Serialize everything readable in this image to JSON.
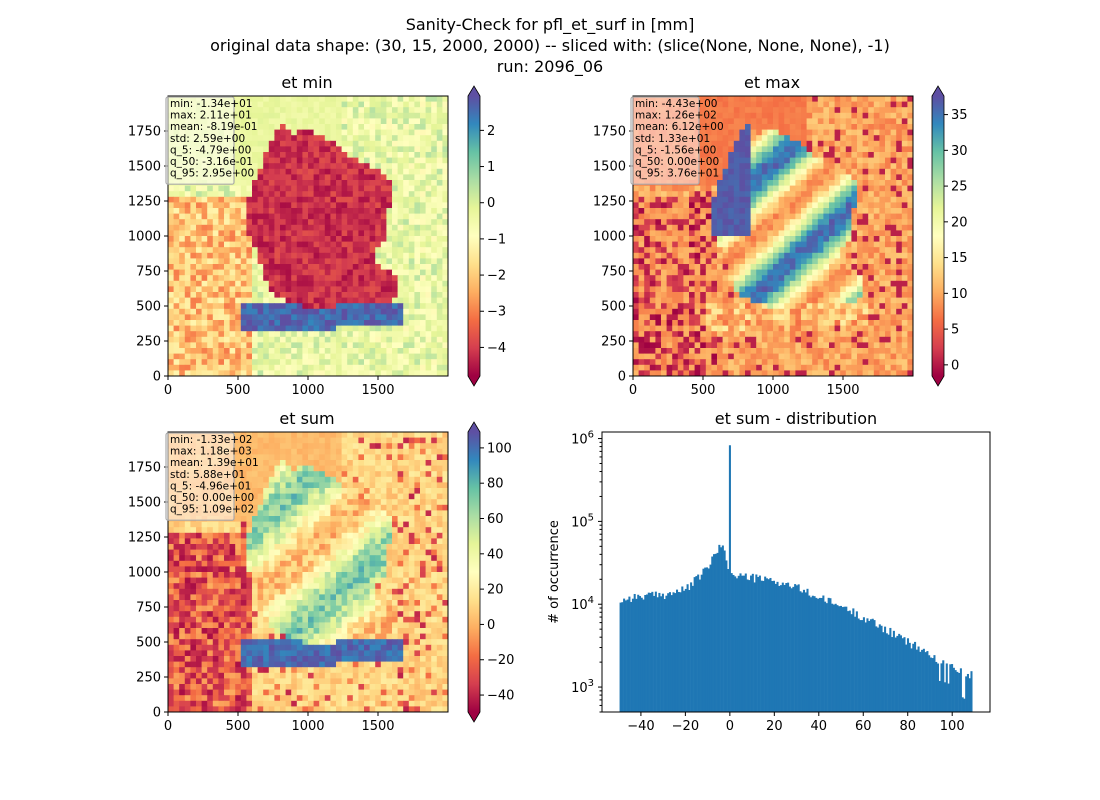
{
  "figure": {
    "title_lines": [
      "Sanity-Check for pfl_et_surf in [mm]",
      "original data shape: (30, 15, 2000, 2000) -- sliced with: (slice(None, None, None), -1)",
      "run: 2096_06"
    ]
  },
  "colors": {
    "spectral": [
      "#9e0142",
      "#d53e4f",
      "#f46d43",
      "#fdae61",
      "#fee08b",
      "#ffffbf",
      "#e6f598",
      "#abdda4",
      "#66c2a5",
      "#3288bd",
      "#5e4fa2"
    ],
    "hist_bar": "#1f77b4"
  },
  "chart_data": [
    {
      "type": "heatmap",
      "title": "et min",
      "xlim": [
        0,
        2000
      ],
      "ylim": [
        0,
        2000
      ],
      "xticks": [
        "0",
        "500",
        "1000",
        "1500"
      ],
      "yticks": [
        "0",
        "250",
        "500",
        "750",
        "1000",
        "1250",
        "1500",
        "1750"
      ],
      "colorbar": {
        "range": [
          -4.79,
          2.95
        ],
        "ticks": [
          "2",
          "1",
          "0",
          "−1",
          "−2",
          "−3",
          "−4"
        ],
        "tick_values": [
          2,
          1,
          0,
          -1,
          -2,
          -3,
          -4
        ],
        "extend": "both"
      },
      "stats": [
        "min: -1.34e+01",
        "max: 2.11e+01",
        "mean: -8.19e-01",
        "std: 2.59e+00",
        "q_5: -4.79e+00",
        "q_50: -3.16e-01",
        "q_95: 2.95e+00"
      ]
    },
    {
      "type": "heatmap",
      "title": "et max",
      "xlim": [
        0,
        2000
      ],
      "ylim": [
        0,
        2000
      ],
      "xticks": [
        "0",
        "500",
        "1000",
        "1500"
      ],
      "yticks": [
        "0",
        "250",
        "500",
        "750",
        "1000",
        "1250",
        "1500",
        "1750"
      ],
      "colorbar": {
        "range": [
          -1.56,
          37.6
        ],
        "ticks": [
          "35",
          "30",
          "25",
          "20",
          "15",
          "10",
          "5",
          "0"
        ],
        "tick_values": [
          35,
          30,
          25,
          20,
          15,
          10,
          5,
          0
        ],
        "extend": "both"
      },
      "stats": [
        "min: -4.43e+00",
        "max: 1.26e+02",
        "mean: 6.12e+00",
        "std: 1.33e+01",
        "q_5: -1.56e+00",
        "q_50: 0.00e+00",
        "q_95: 3.76e+01"
      ]
    },
    {
      "type": "heatmap",
      "title": "et sum",
      "xlim": [
        0,
        2000
      ],
      "ylim": [
        0,
        2000
      ],
      "xticks": [
        "0",
        "500",
        "1000",
        "1500"
      ],
      "yticks": [
        "0",
        "250",
        "500",
        "750",
        "1000",
        "1250",
        "1500",
        "1750"
      ],
      "colorbar": {
        "range": [
          -49.6,
          109
        ],
        "ticks": [
          "100",
          "80",
          "60",
          "40",
          "20",
          "0",
          "−20",
          "−40"
        ],
        "tick_values": [
          100,
          80,
          60,
          40,
          20,
          0,
          -20,
          -40
        ],
        "extend": "both"
      },
      "stats": [
        "min: -1.33e+02",
        "max: 1.18e+03",
        "mean: 1.39e+01",
        "std: 5.88e+01",
        "q_5: -4.96e+01",
        "q_50: 0.00e+00",
        "q_95: 1.09e+02"
      ]
    },
    {
      "type": "bar",
      "title": "et sum - distribution",
      "ylabel": "# of occurrence",
      "yscale": "log",
      "xlim": [
        -57.5,
        117
      ],
      "ylim": [
        500,
        1200000
      ],
      "xticks": [
        "−40",
        "−20",
        "0",
        "20",
        "40",
        "60",
        "80",
        "100"
      ],
      "xtick_values": [
        -40,
        -20,
        0,
        20,
        40,
        60,
        80,
        100
      ],
      "yticks": [
        {
          "base": "10",
          "exp": "3",
          "value": 1000
        },
        {
          "base": "10",
          "exp": "4",
          "value": 10000
        },
        {
          "base": "10",
          "exp": "5",
          "value": 100000
        },
        {
          "base": "10",
          "exp": "6",
          "value": 1000000
        }
      ],
      "bin_range": [
        -49.6,
        109
      ],
      "bin_count": 200,
      "anchors": [
        [
          -49.5,
          11000
        ],
        [
          -45,
          12000
        ],
        [
          -40,
          12500
        ],
        [
          -30,
          13000
        ],
        [
          -20,
          15000
        ],
        [
          -15,
          20000
        ],
        [
          -10,
          28000
        ],
        [
          -6,
          42000
        ],
        [
          -3,
          55000
        ],
        [
          -1,
          30000
        ],
        [
          0.5,
          22000
        ],
        [
          5,
          22000
        ],
        [
          10,
          21000
        ],
        [
          20,
          19000
        ],
        [
          30,
          16000
        ],
        [
          40,
          12000
        ],
        [
          50,
          9500
        ],
        [
          60,
          7000
        ],
        [
          70,
          5000
        ],
        [
          80,
          3500
        ],
        [
          90,
          2500
        ],
        [
          100,
          1700
        ],
        [
          105,
          1500
        ],
        [
          108.5,
          1400
        ]
      ],
      "peak": {
        "x": -0.4,
        "value": 830000
      }
    }
  ]
}
